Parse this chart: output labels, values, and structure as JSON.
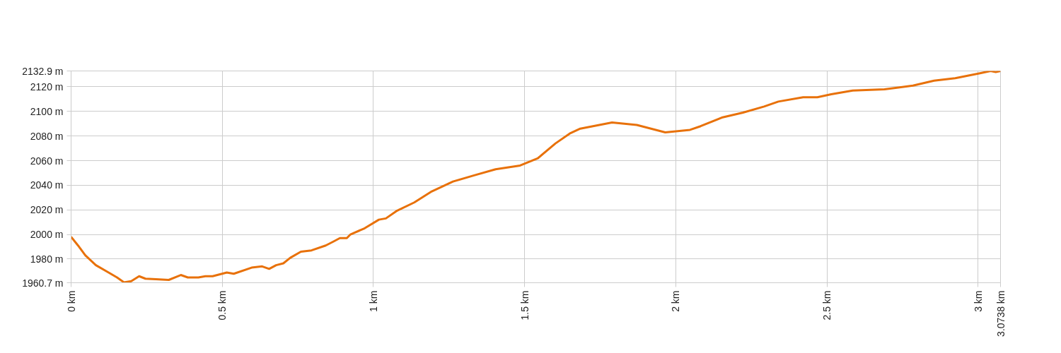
{
  "chart_data": {
    "type": "line",
    "grid": true,
    "marker": "none",
    "line_style": "solid",
    "x": [
      0,
      0.023,
      0.047,
      0.082,
      0.117,
      0.152,
      0.175,
      0.199,
      0.225,
      0.246,
      0.281,
      0.323,
      0.363,
      0.386,
      0.421,
      0.444,
      0.468,
      0.515,
      0.538,
      0.597,
      0.632,
      0.655,
      0.678,
      0.702,
      0.725,
      0.76,
      0.795,
      0.842,
      0.866,
      0.889,
      0.912,
      0.924,
      0.971,
      1.018,
      1.041,
      1.076,
      1.135,
      1.193,
      1.263,
      1.333,
      1.404,
      1.485,
      1.544,
      1.602,
      1.649,
      1.684,
      1.789,
      1.871,
      1.918,
      1.965,
      2.047,
      2.082,
      2.152,
      2.222,
      2.292,
      2.339,
      2.421,
      2.468,
      2.514,
      2.585,
      2.69,
      2.784,
      2.854,
      2.924,
      3.006,
      3.041,
      3.058,
      3.0738
    ],
    "series": [
      {
        "color": "#e8710a",
        "values": [
          1998,
          1991,
          1983,
          1975,
          1970,
          1965,
          1961,
          1962,
          1966,
          1964,
          1963.5,
          1963,
          1967,
          1965,
          1965,
          1966,
          1966,
          1969,
          1968,
          1973,
          1974,
          1972,
          1975,
          1976.5,
          1981,
          1986,
          1987,
          1991,
          1994,
          1997,
          1997,
          2000,
          2005,
          2012,
          2013,
          2019,
          2026,
          2035,
          2043,
          2048,
          2053,
          2056,
          2062,
          2074,
          2082,
          2086,
          2091,
          2089,
          2086,
          2083,
          2085,
          2088,
          2095,
          2099,
          2104,
          2108,
          2111.5,
          2111.5,
          2114,
          2117,
          2118,
          2121,
          2125,
          2127,
          2131,
          2132.9,
          2132,
          2132.9
        ]
      }
    ],
    "xlim": [
      0,
      3.0738
    ],
    "ylim": [
      1960.7,
      2132.9
    ],
    "xticks": [
      {
        "value": 0,
        "label": "0 km"
      },
      {
        "value": 0.5,
        "label": "0.5 km"
      },
      {
        "value": 1,
        "label": "1 km"
      },
      {
        "value": 1.5,
        "label": "1.5 km"
      },
      {
        "value": 2,
        "label": "2 km"
      },
      {
        "value": 2.5,
        "label": "2.5 km"
      },
      {
        "value": 3,
        "label": "3 km"
      },
      {
        "value": 3.0738,
        "label": "3.0738 km"
      }
    ],
    "yticks": [
      {
        "value": 1960.7,
        "label": "1960.7 m"
      },
      {
        "value": 1980,
        "label": "1980 m"
      },
      {
        "value": 2000,
        "label": "2000 m"
      },
      {
        "value": 2020,
        "label": "2020 m"
      },
      {
        "value": 2040,
        "label": "2040 m"
      },
      {
        "value": 2060,
        "label": "2060 m"
      },
      {
        "value": 2080,
        "label": "2080 m"
      },
      {
        "value": 2100,
        "label": "2100 m"
      },
      {
        "value": 2120,
        "label": "2120 m"
      },
      {
        "value": 2132.9,
        "label": "2132.9 m"
      }
    ]
  }
}
